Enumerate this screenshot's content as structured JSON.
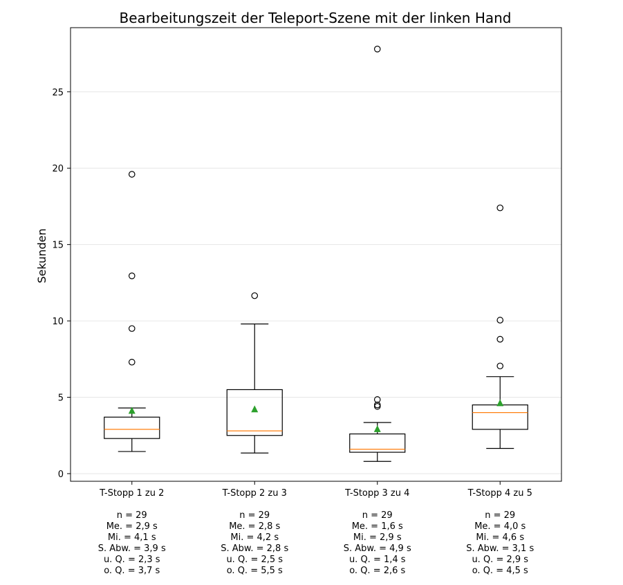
{
  "chart_data": {
    "type": "box",
    "title": "Bearbeitungszeit der Teleport-Szene mit der linken Hand",
    "ylabel": "Sekunden",
    "xlabel": "",
    "ylim": [
      -0.5,
      29.2
    ],
    "yticks": [
      0,
      5,
      10,
      15,
      20,
      25
    ],
    "grid": "horizontal",
    "colors": {
      "box": "#000000",
      "median": "#ff7f0e",
      "mean": "#2ca02c",
      "grid": "#e6e6e6"
    },
    "groups": [
      {
        "label": "T-Stopp 1 zu 2",
        "whisker_low": 1.45,
        "q1": 2.3,
        "median": 2.9,
        "q3": 3.7,
        "whisker_high": 4.3,
        "mean": 4.1,
        "outliers": [
          7.3,
          9.5,
          12.95,
          19.6
        ],
        "stats": [
          "n = 29",
          "Me. = 2,9 s",
          "Mi. = 4,1 s",
          "S. Abw. = 3,9 s",
          "u. Q. = 2,3 s",
          "o. Q. = 3,7 s"
        ]
      },
      {
        "label": "T-Stopp 2 zu 3",
        "whisker_low": 1.35,
        "q1": 2.5,
        "median": 2.8,
        "q3": 5.5,
        "whisker_high": 9.8,
        "mean": 4.2,
        "outliers": [
          11.65
        ],
        "stats": [
          "n = 29",
          "Me. = 2,8 s",
          "Mi. = 4,2 s",
          "S. Abw. = 2,8 s",
          "u. Q. = 2,5 s",
          "o. Q. = 5,5 s"
        ]
      },
      {
        "label": "T-Stopp 3 zu 4",
        "whisker_low": 0.8,
        "q1": 1.4,
        "median": 1.6,
        "q3": 2.6,
        "whisker_high": 3.35,
        "mean": 2.9,
        "outliers": [
          4.4,
          4.5,
          4.85,
          27.8
        ],
        "stats": [
          "n = 29",
          "Me. = 1,6 s",
          "Mi. = 2,9 s",
          "S. Abw. = 4,9 s",
          "u. Q. = 1,4 s",
          "o. Q. = 2,6 s"
        ]
      },
      {
        "label": "T-Stopp 4 zu 5",
        "whisker_low": 1.65,
        "q1": 2.9,
        "median": 4.0,
        "q3": 4.5,
        "whisker_high": 6.35,
        "mean": 4.6,
        "outliers": [
          7.05,
          8.8,
          10.05,
          17.4
        ],
        "stats": [
          "n = 29",
          "Me. = 4,0 s",
          "Mi. = 4,6 s",
          "S. Abw. = 3,1 s",
          "u. Q. = 2,9 s",
          "o. Q. = 4,5 s"
        ]
      }
    ]
  }
}
